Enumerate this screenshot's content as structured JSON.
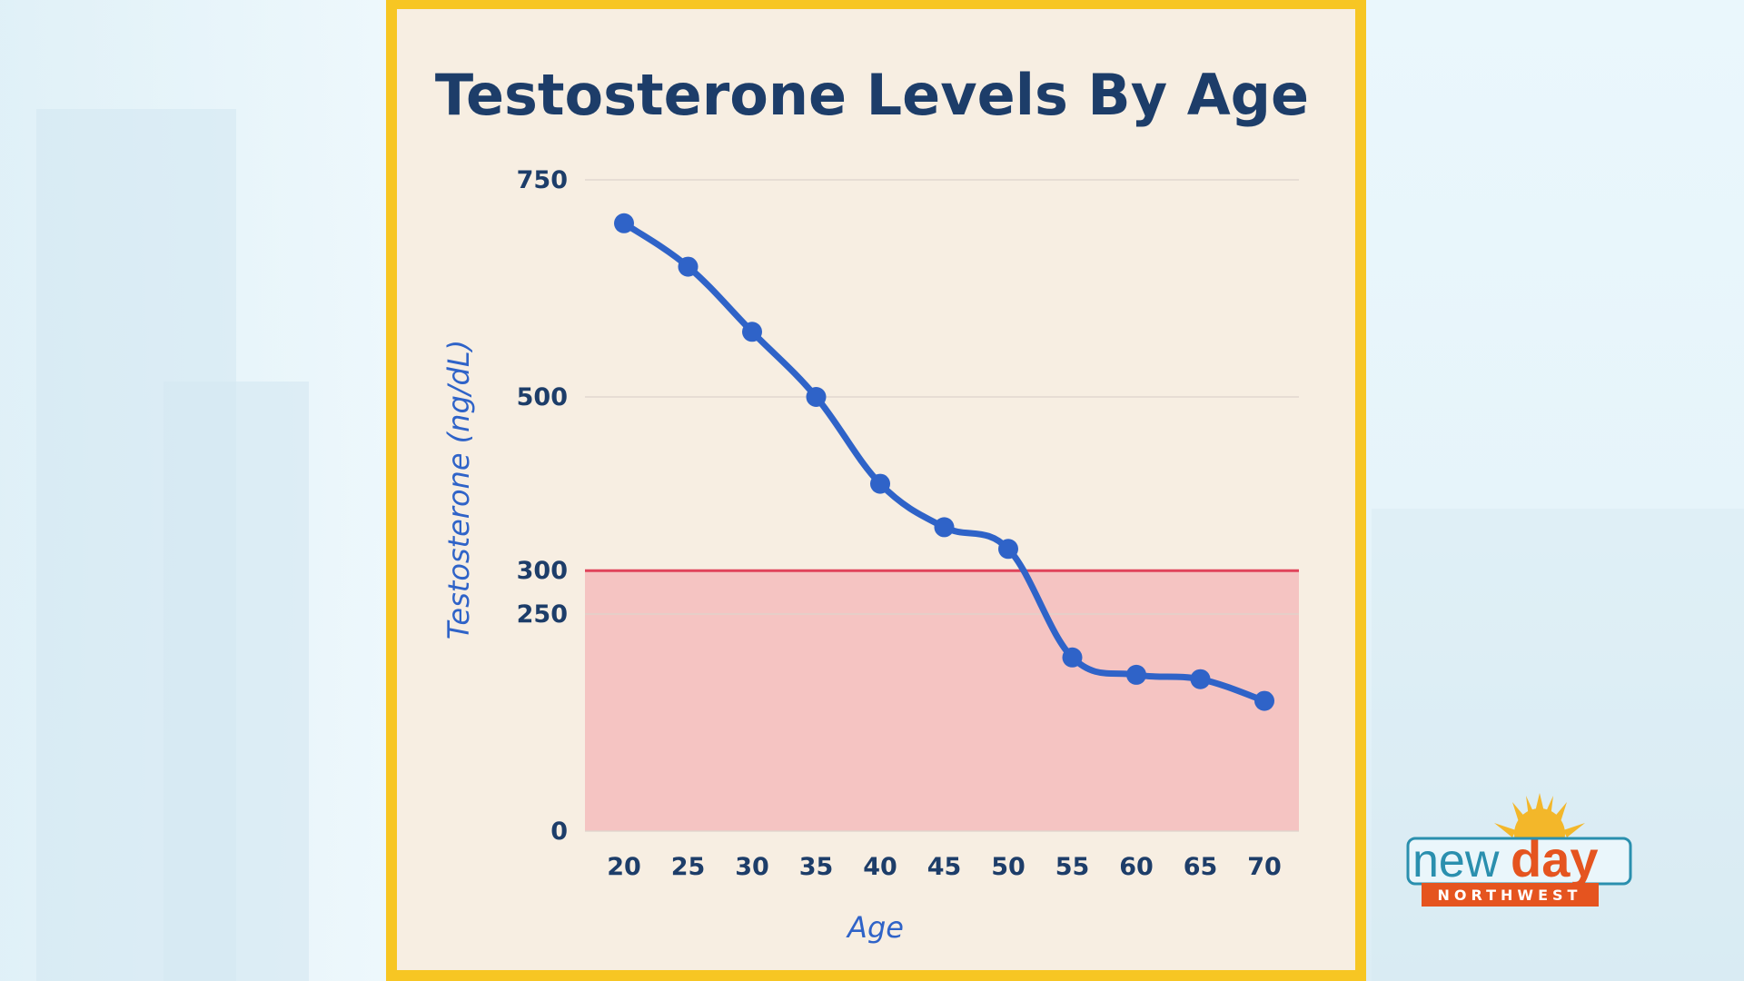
{
  "chart_data": {
    "type": "line",
    "title": "Testosterone Levels By Age",
    "xlabel": "Age",
    "ylabel": "Testosterone (ng/dL)",
    "x": [
      20,
      25,
      30,
      35,
      40,
      45,
      50,
      55,
      60,
      65,
      70
    ],
    "series": [
      {
        "values": [
          700,
          650,
          575,
          500,
          400,
          350,
          325,
          200,
          180,
          175,
          150
        ],
        "color": "#2f63c8"
      }
    ],
    "ylim": [
      0,
      750
    ],
    "yticks": [
      0,
      250,
      300,
      500,
      750
    ],
    "xticks": [
      20,
      25,
      30,
      35,
      40,
      45,
      50,
      55,
      60,
      65,
      70
    ],
    "grid": true,
    "threshold": {
      "value": 300,
      "line_color": "#e0435a",
      "fill_color": "#f5c4c2"
    }
  },
  "logo": {
    "word1": "new",
    "word2": "day",
    "subtitle": "NORTHWEST"
  },
  "colors": {
    "frame": "#f7c623",
    "panel": "#f7eee2",
    "title": "#1d3d69",
    "axis_label": "#2f63c8"
  }
}
